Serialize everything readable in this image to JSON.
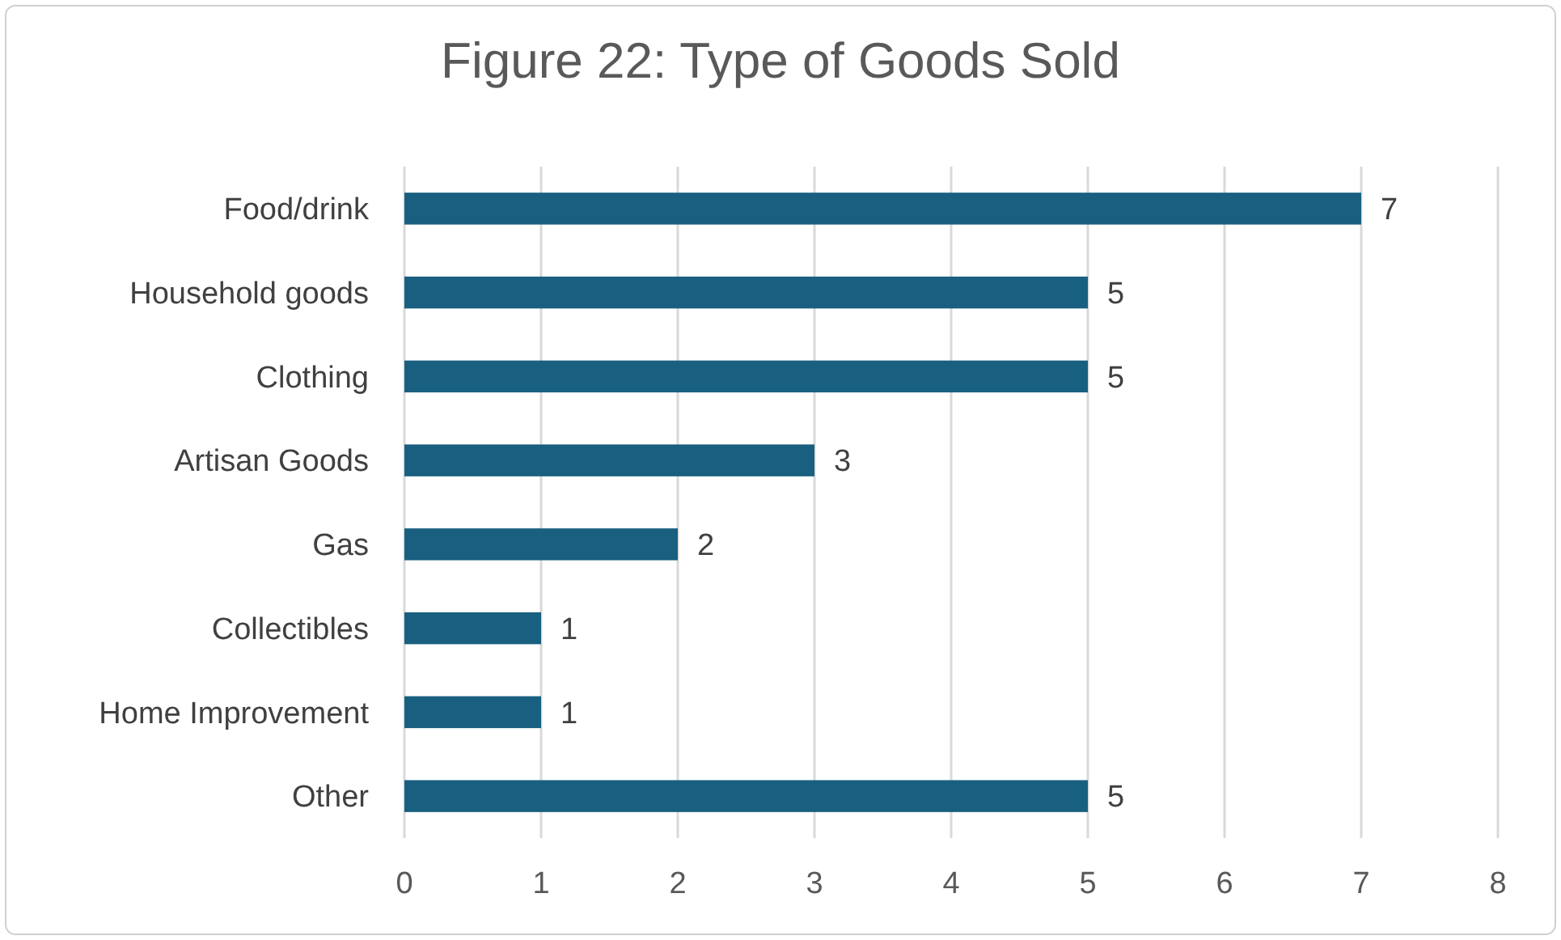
{
  "chart_data": {
    "type": "bar",
    "orientation": "horizontal",
    "title": "Figure 22: Type of Goods Sold",
    "categories": [
      "Food/drink",
      "Household goods",
      "Clothing",
      "Artisan Goods",
      "Gas",
      "Collectibles",
      "Home Improvement",
      "Other"
    ],
    "values": [
      7,
      5,
      5,
      3,
      2,
      1,
      1,
      5
    ],
    "color": "#195f7f",
    "xlim": [
      0,
      8
    ],
    "xticks": [
      0,
      1,
      2,
      3,
      4,
      5,
      6,
      7,
      8
    ],
    "grid": "x",
    "data_labels": true
  }
}
